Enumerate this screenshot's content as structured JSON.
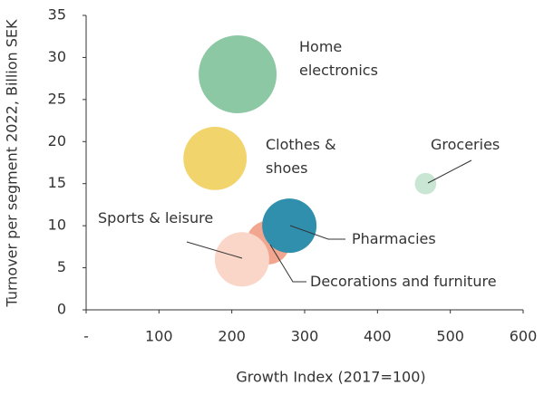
{
  "chart_data": {
    "type": "bubble",
    "x_label": "Growth Index (2017=100)",
    "y_label": "Turnover per segment 2022, Billion SEK",
    "xlim": [
      0,
      600
    ],
    "xticks": [
      {
        "value": 0,
        "label": "-"
      },
      100,
      200,
      300,
      400,
      500,
      600
    ],
    "ylim": [
      0,
      35
    ],
    "yticks": [
      0,
      5,
      10,
      15,
      20,
      25,
      30,
      35
    ],
    "grid": false,
    "series": [
      {
        "name": "Home electronics",
        "color": "#8dc8a4",
        "x": [
          208
        ],
        "values": [
          28
        ],
        "sizes": [
          185
        ]
      },
      {
        "name": "Clothes & shoes",
        "color": "#f2d46c",
        "x": [
          177
        ],
        "values": [
          18
        ],
        "sizes": [
          122
        ]
      },
      {
        "name": "Groceries",
        "color": "#c8e6d3",
        "x": [
          466
        ],
        "values": [
          15
        ],
        "sizes": [
          14
        ]
      },
      {
        "name": "Decorations and furniture",
        "color": "#f2a68f",
        "x": [
          250
        ],
        "values": [
          8
        ],
        "sizes": [
          58
        ]
      },
      {
        "name": "Pharmacies",
        "color": "#2f8fad",
        "x": [
          279
        ],
        "values": [
          10
        ],
        "sizes": [
          90
        ]
      },
      {
        "name": "Sports & leisure",
        "color": "#fad6c9",
        "x": [
          214
        ],
        "values": [
          6
        ],
        "sizes": [
          90
        ]
      }
    ]
  }
}
